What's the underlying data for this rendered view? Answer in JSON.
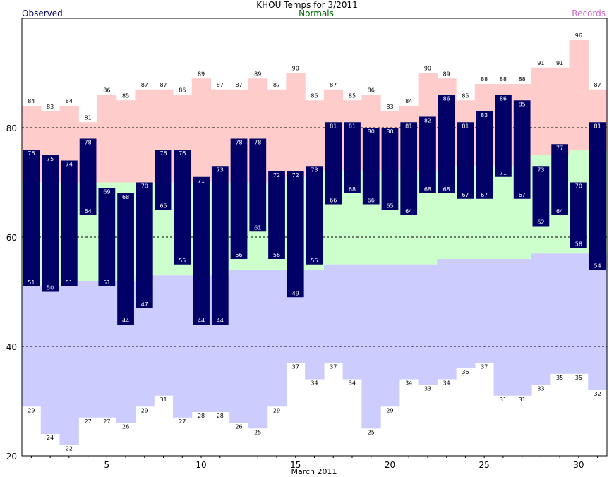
{
  "chart_data": {
    "type": "bar",
    "title": "KHOU Temps for 3/2011",
    "legend": {
      "observed": "Observed",
      "normals": "Normals",
      "records": "Records"
    },
    "xlabel": "March 2011",
    "ylim": [
      20,
      100
    ],
    "yticks": [
      20,
      40,
      60,
      80
    ],
    "xticks": [
      5,
      10,
      15,
      20,
      25,
      30
    ],
    "grid": "dashed horizontal lines at 40, 60, 80",
    "days": [
      1,
      2,
      3,
      4,
      5,
      6,
      7,
      8,
      9,
      10,
      11,
      12,
      13,
      14,
      15,
      16,
      17,
      18,
      19,
      20,
      21,
      22,
      23,
      24,
      25,
      26,
      27,
      28,
      29,
      30,
      31
    ],
    "series": [
      {
        "name": "Observed",
        "key": "obs_high",
        "values": [
          76,
          75,
          74,
          78,
          69,
          68,
          70,
          76,
          76,
          71,
          73,
          78,
          78,
          72,
          72,
          73,
          81,
          81,
          80,
          80,
          81,
          82,
          86,
          81,
          83,
          86,
          85,
          73,
          77,
          70,
          81
        ]
      },
      {
        "name": "Observed",
        "key": "obs_low",
        "values": [
          51,
          50,
          51,
          64,
          51,
          44,
          47,
          65,
          55,
          44,
          44,
          56,
          61,
          56,
          49,
          55,
          66,
          68,
          66,
          65,
          64,
          68,
          68,
          67,
          67,
          71,
          67,
          62,
          64,
          58,
          54
        ]
      },
      {
        "name": "Records",
        "key": "record_high",
        "values": [
          84,
          83,
          84,
          81,
          86,
          85,
          87,
          87,
          86,
          89,
          87,
          87,
          89,
          87,
          90,
          85,
          87,
          85,
          86,
          83,
          84,
          90,
          89,
          85,
          88,
          88,
          88,
          91,
          91,
          96,
          87
        ]
      },
      {
        "name": "Records",
        "key": "record_low",
        "values": [
          29,
          24,
          22,
          27,
          27,
          26,
          29,
          31,
          27,
          28,
          28,
          26,
          25,
          29,
          37,
          34,
          37,
          34,
          25,
          29,
          34,
          33,
          34,
          36,
          37,
          31,
          31,
          33,
          35,
          35,
          32
        ]
      },
      {
        "name": "Normals",
        "key": "normal_high",
        "values": [
          70,
          70,
          70,
          70,
          70,
          70,
          70,
          70,
          70,
          70,
          70,
          70,
          70,
          70,
          71,
          72,
          72,
          72,
          72,
          72,
          72,
          72,
          73,
          73,
          73,
          73,
          73,
          75,
          75,
          76,
          76
        ]
      },
      {
        "name": "Normals",
        "key": "normal_low",
        "values": [
          51,
          51,
          51,
          52,
          52,
          52,
          53,
          53,
          53,
          53,
          53,
          54,
          54,
          54,
          54,
          54,
          55,
          55,
          55,
          55,
          55,
          55,
          56,
          56,
          56,
          56,
          56,
          57,
          57,
          57,
          57
        ]
      }
    ],
    "colors": {
      "observed": "#000066",
      "observed_label": "#ffffff",
      "record_band": "#ffcccc",
      "normal_high_band": "#ccffcc",
      "normal_low_band": "#ccccff",
      "grid": "#000000",
      "observed_title": "#000066",
      "normals_title": "#006600",
      "records_title": "#cc66cc"
    }
  }
}
